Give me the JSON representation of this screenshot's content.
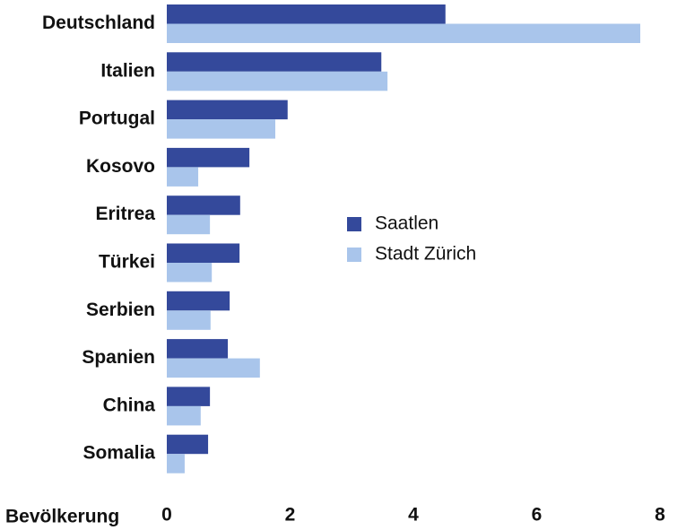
{
  "chart_data": {
    "type": "barh",
    "categories": [
      "Deutschland",
      "Italien",
      "Portugal",
      "Kosovo",
      "Eritrea",
      "Türkei",
      "Serbien",
      "Spanien",
      "China",
      "Somalia"
    ],
    "series": [
      {
        "name": "Saatlen",
        "color": "#34499b",
        "values": [
          4.52,
          3.48,
          1.96,
          1.34,
          1.19,
          1.18,
          1.02,
          0.99,
          0.7,
          0.67
        ]
      },
      {
        "name": "Stadt Zürich",
        "color": "#a9c5eb",
        "values": [
          7.68,
          3.58,
          1.76,
          0.51,
          0.7,
          0.73,
          0.71,
          1.51,
          0.55,
          0.29
        ]
      }
    ],
    "x_label": "Bevölkerung",
    "xlim": [
      0,
      8
    ],
    "xticks": [
      0,
      2,
      4,
      6,
      8
    ],
    "grid": false,
    "legend": "center"
  }
}
